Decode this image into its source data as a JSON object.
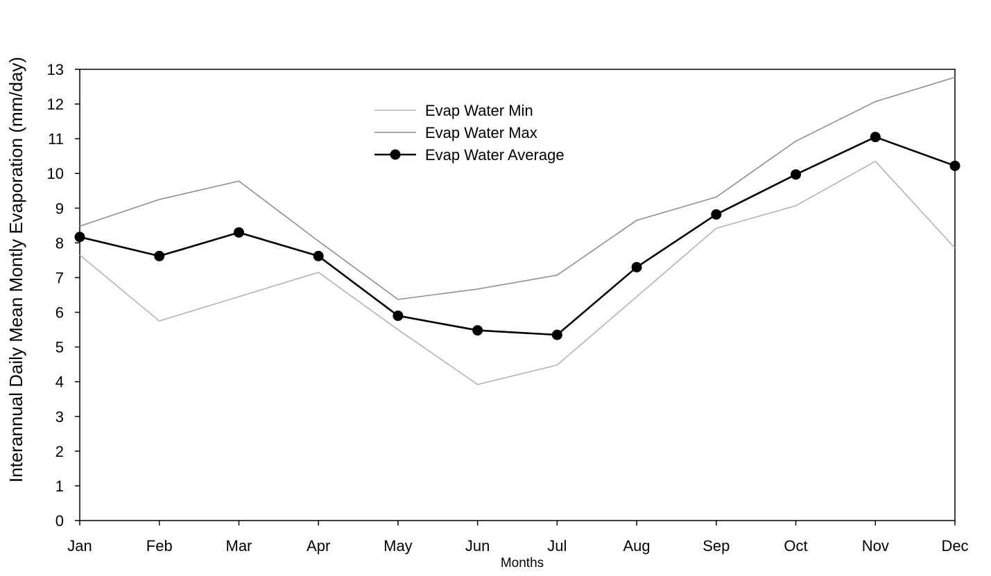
{
  "chart_data": {
    "type": "line",
    "title": "",
    "xlabel": "Months",
    "ylabel": "Interannual Daily Mean Montly Evaporation  (mm/day)",
    "categories": [
      "Jan",
      "Feb",
      "Mar",
      "Apr",
      "May",
      "Jun",
      "Jul",
      "Aug",
      "Sep",
      "Oct",
      "Nov",
      "Dec"
    ],
    "ylim": [
      0,
      13
    ],
    "yticks": [
      0,
      1,
      2,
      3,
      4,
      5,
      6,
      7,
      8,
      9,
      10,
      11,
      12,
      13
    ],
    "grid": false,
    "legend_position": "top-center",
    "series": [
      {
        "name": "Evap Water Min",
        "color": "#b3b3b3",
        "marker": "none",
        "values": [
          7.65,
          5.75,
          6.45,
          7.15,
          5.5,
          3.92,
          4.48,
          6.45,
          8.42,
          9.07,
          10.35,
          7.85
        ]
      },
      {
        "name": "Evap Water Max",
        "color": "#8c8c9a",
        "marker": "none",
        "values": [
          8.48,
          9.25,
          9.78,
          8.05,
          6.37,
          6.67,
          7.07,
          8.65,
          9.32,
          10.93,
          12.07,
          12.77
        ]
      },
      {
        "name": "Evap Water Average",
        "color": "#000000",
        "marker": "circle",
        "values": [
          8.17,
          7.62,
          8.3,
          7.62,
          5.9,
          5.48,
          5.35,
          7.3,
          8.82,
          9.97,
          11.05,
          10.22
        ]
      }
    ]
  }
}
